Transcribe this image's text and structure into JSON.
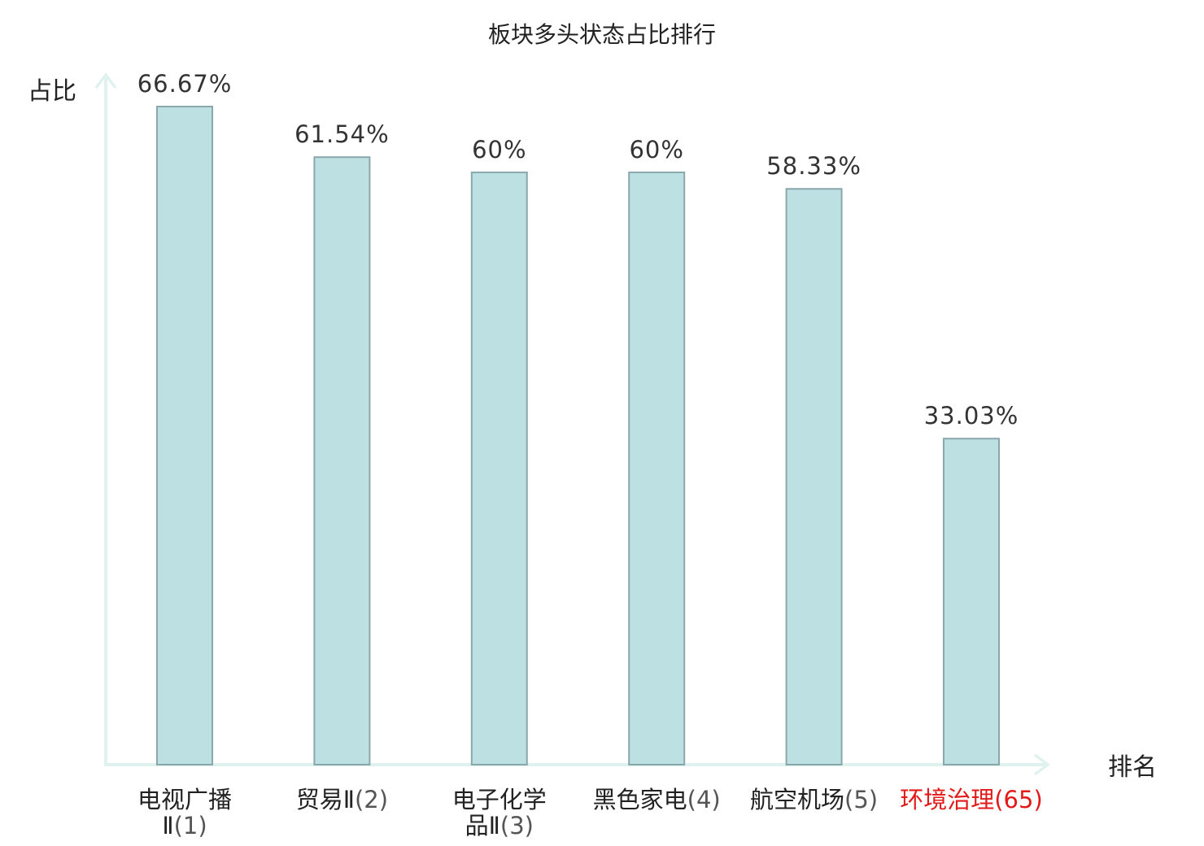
{
  "chart_data": {
    "type": "bar",
    "title": "板块多头状态占比排行",
    "ylabel": "占比",
    "xlabel": "排名",
    "ylim": [
      0,
      70
    ],
    "grid": false,
    "categories": [
      {
        "name_line1": "电视广播",
        "name_line2": "Ⅱ",
        "rank": "(1)",
        "highlight": false
      },
      {
        "name_line1": "贸易Ⅱ",
        "name_line2": "",
        "rank": "(2)",
        "highlight": false
      },
      {
        "name_line1": "电子化学",
        "name_line2": "品Ⅱ",
        "rank": "(3)",
        "highlight": false
      },
      {
        "name_line1": "黑色家电",
        "name_line2": "",
        "rank": "(4)",
        "highlight": false
      },
      {
        "name_line1": "航空机场",
        "name_line2": "",
        "rank": "(5)",
        "highlight": false
      },
      {
        "name_line1": "环境治理",
        "name_line2": "",
        "rank": "(65)",
        "highlight": true
      }
    ],
    "values": [
      66.67,
      61.54,
      60,
      60,
      58.33,
      33.03
    ],
    "value_labels": [
      "66.67%",
      "61.54%",
      "60%",
      "60%",
      "58.33%",
      "33.03%"
    ],
    "colors": {
      "bar_fill": "#bde0e3",
      "bar_stroke": "#8aa8ab",
      "axis": "#dff2ef",
      "label_text": "#222222",
      "rank_text": "#555555",
      "highlight": "#e31a1a"
    }
  }
}
